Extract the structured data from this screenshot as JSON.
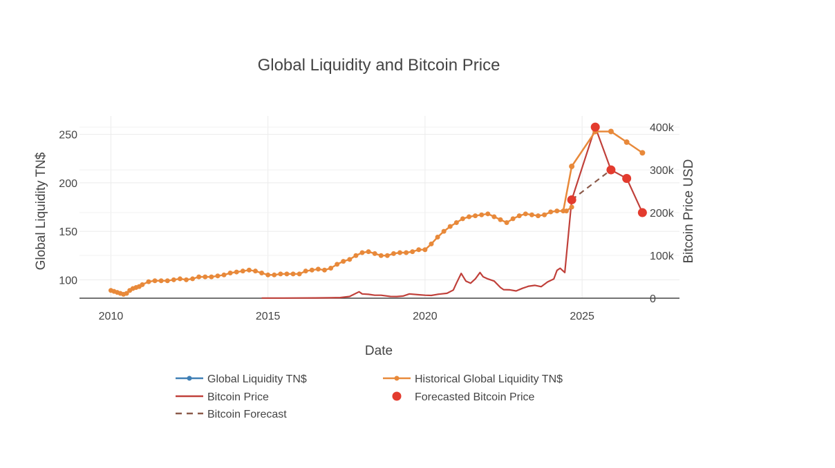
{
  "chart_data": {
    "type": "line",
    "title": "Global Liquidity and Bitcoin Price",
    "xlabel": "Date",
    "ylabel_left": "Global Liquidity TN$",
    "ylabel_right": "Bitcoin Price USD",
    "xlim": [
      2009.0,
      2028.1
    ],
    "ylim_left": [
      81,
      269
    ],
    "ylim_right": [
      0,
      426000
    ],
    "x_ticks": [
      2010,
      2015,
      2020,
      2025
    ],
    "x_tick_labels": [
      "2010",
      "2015",
      "2020",
      "2025"
    ],
    "y_left_ticks": [
      100,
      150,
      200,
      250
    ],
    "y_left_tick_labels": [
      "100",
      "150",
      "200",
      "250"
    ],
    "y_right_ticks": [
      0,
      100000,
      200000,
      300000,
      400000
    ],
    "y_right_tick_labels": [
      "0",
      "100k",
      "200k",
      "300k",
      "400k"
    ],
    "grid": true,
    "legend_placement": "bottom",
    "colors": {
      "global_liquidity": "#3f7fb5",
      "historical_liquidity": "#e8893a",
      "bitcoin_price": "#c0403a",
      "forecasted_bitcoin": "#e33b2e",
      "bitcoin_forecast": "#8b5a4a"
    },
    "series": [
      {
        "name": "Global Liquidity TN$",
        "axis": "left",
        "style": "line+markers",
        "x": [
          2024.5,
          2024.67
        ],
        "y": [
          171,
          175
        ]
      },
      {
        "name": "Historical Global Liquidity TN$",
        "axis": "left",
        "style": "line+markers",
        "x": [
          2010.0,
          2010.1,
          2010.2,
          2010.3,
          2010.4,
          2010.5,
          2010.6,
          2010.7,
          2010.8,
          2010.9,
          2011.0,
          2011.2,
          2011.4,
          2011.6,
          2011.8,
          2012.0,
          2012.2,
          2012.4,
          2012.6,
          2012.8,
          2013.0,
          2013.2,
          2013.4,
          2013.6,
          2013.8,
          2014.0,
          2014.2,
          2014.4,
          2014.6,
          2014.8,
          2015.0,
          2015.2,
          2015.4,
          2015.6,
          2015.8,
          2016.0,
          2016.2,
          2016.4,
          2016.6,
          2016.8,
          2017.0,
          2017.2,
          2017.4,
          2017.6,
          2017.8,
          2018.0,
          2018.2,
          2018.4,
          2018.6,
          2018.8,
          2019.0,
          2019.2,
          2019.4,
          2019.6,
          2019.8,
          2020.0,
          2020.2,
          2020.4,
          2020.6,
          2020.8,
          2021.0,
          2021.2,
          2021.4,
          2021.6,
          2021.8,
          2022.0,
          2022.2,
          2022.4,
          2022.6,
          2022.8,
          2023.0,
          2023.2,
          2023.4,
          2023.6,
          2023.8,
          2024.0,
          2024.2,
          2024.4,
          2024.67,
          2025.42,
          2025.92,
          2026.42,
          2026.92
        ],
        "y": [
          89,
          88,
          87,
          86,
          85,
          86,
          89,
          91,
          92,
          93,
          95,
          98,
          99,
          99,
          99,
          100,
          101,
          100,
          101,
          103,
          103,
          103,
          104,
          105,
          107,
          108,
          109,
          110,
          109,
          107,
          105,
          105,
          106,
          106,
          106,
          106,
          109,
          110,
          111,
          110,
          112,
          116,
          119,
          121,
          125,
          128,
          129,
          127,
          125,
          125,
          127,
          128,
          128,
          129,
          131,
          131,
          137,
          144,
          150,
          155,
          159,
          163,
          165,
          166,
          167,
          168,
          165,
          162,
          159,
          163,
          166,
          168,
          167,
          166,
          167,
          170,
          171,
          171,
          217,
          253,
          253,
          242,
          231
        ]
      },
      {
        "name": "Bitcoin Price",
        "axis": "right",
        "style": "line",
        "x": [
          2014.8,
          2015.5,
          2016.0,
          2016.5,
          2017.0,
          2017.3,
          2017.6,
          2017.9,
          2018.0,
          2018.2,
          2018.4,
          2018.6,
          2018.9,
          2019.1,
          2019.3,
          2019.5,
          2019.8,
          2020.0,
          2020.2,
          2020.4,
          2020.7,
          2020.9,
          2021.0,
          2021.15,
          2021.3,
          2021.45,
          2021.6,
          2021.75,
          2021.85,
          2022.0,
          2022.2,
          2022.4,
          2022.5,
          2022.7,
          2022.9,
          2023.1,
          2023.3,
          2023.5,
          2023.7,
          2023.9,
          2024.1,
          2024.2,
          2024.3,
          2024.45,
          2024.67,
          2025.42,
          2025.92,
          2026.42,
          2026.92
        ],
        "y": [
          400,
          300,
          450,
          650,
          1000,
          1500,
          4000,
          15000,
          10000,
          9000,
          7000,
          7000,
          4000,
          3800,
          5000,
          10000,
          8000,
          7000,
          6500,
          9000,
          11500,
          19000,
          35000,
          58000,
          40000,
          35000,
          45000,
          60000,
          50000,
          45000,
          40000,
          25000,
          20000,
          19500,
          17000,
          23000,
          28000,
          30000,
          27000,
          38000,
          45000,
          65000,
          70000,
          60000,
          230000,
          400000,
          300000,
          280000,
          200000
        ]
      },
      {
        "name": "Forecasted Bitcoin Price",
        "axis": "right",
        "style": "markers",
        "x": [
          2024.67,
          2025.42,
          2025.92,
          2026.42,
          2026.92
        ],
        "y": [
          230000,
          400000,
          300000,
          280000,
          200000
        ]
      },
      {
        "name": "Bitcoin Forecast",
        "axis": "right",
        "style": "dash",
        "x": [
          2024.67,
          2025.92
        ],
        "y": [
          230000,
          300000
        ]
      }
    ],
    "legend": [
      {
        "label": "Global Liquidity TN$",
        "style": "line+markers",
        "series": "global_liquidity"
      },
      {
        "label": "Historical Global Liquidity TN$",
        "style": "line+markers",
        "series": "historical_liquidity"
      },
      {
        "label": "Bitcoin Price",
        "style": "line",
        "series": "bitcoin_price"
      },
      {
        "label": "Forecasted Bitcoin Price",
        "style": "marker",
        "series": "forecasted_bitcoin"
      },
      {
        "label": "Bitcoin Forecast",
        "style": "dash",
        "series": "bitcoin_forecast"
      }
    ]
  }
}
